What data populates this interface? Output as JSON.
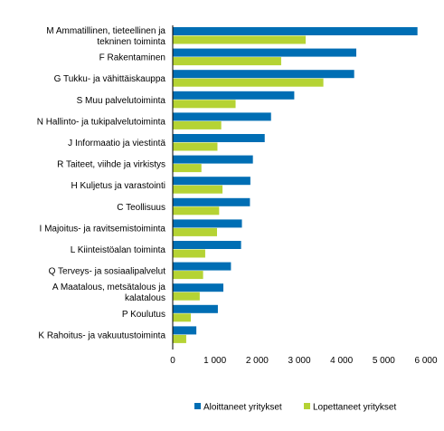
{
  "chart_data": {
    "type": "bar",
    "orientation": "horizontal",
    "categories": [
      "M Ammatillinen, tieteellinen ja tekninen toiminta",
      "F Rakentaminen",
      "G Tukku- ja vähittäiskauppa",
      "S Muu palvelutoiminta",
      "N Hallinto- ja tukipalvelutoiminta",
      "J Informaatio ja viestintä",
      "R Taiteet, viihde ja virkistys",
      "H Kuljetus ja varastointi",
      "C Teollisuus",
      "I Majoitus- ja ravitsemistoiminta",
      "L Kiinteistöalan toiminta",
      "Q Terveys- ja sosiaalipalvelut",
      "A Maatalous, metsätalous ja kalatalous",
      "P Koulutus",
      "K Rahoitus- ja vakuutustoiminta"
    ],
    "category_lines": [
      [
        "M Ammatillinen, tieteellinen ja",
        "tekninen toiminta"
      ],
      [
        "F Rakentaminen"
      ],
      [
        "G Tukku- ja vähittäiskauppa"
      ],
      [
        "S Muu palvelutoiminta"
      ],
      [
        "N Hallinto- ja tukipalvelutoiminta"
      ],
      [
        "J Informaatio ja viestintä"
      ],
      [
        "R Taiteet, viihde ja virkistys"
      ],
      [
        "H Kuljetus ja varastointi"
      ],
      [
        "C Teollisuus"
      ],
      [
        "I Majoitus- ja ravitsemistoiminta"
      ],
      [
        "L Kiinteistöalan toiminta"
      ],
      [
        "Q Terveys- ja sosiaalipalvelut"
      ],
      [
        "A Maatalous, metsätalous ja",
        "kalatalous"
      ],
      [
        "P Koulutus"
      ],
      [
        "K Rahoitus- ja vakuutustoiminta"
      ]
    ],
    "series": [
      {
        "name": "Aloittaneet yritykset",
        "color": "#006eb4",
        "values": [
          5800,
          4350,
          4300,
          2880,
          2330,
          2180,
          1900,
          1840,
          1830,
          1640,
          1620,
          1380,
          1200,
          1070,
          560
        ]
      },
      {
        "name": "Lopettaneet yritykset",
        "color": "#b5d334",
        "values": [
          3150,
          2570,
          3570,
          1490,
          1150,
          1060,
          680,
          1180,
          1100,
          1050,
          770,
          720,
          640,
          430,
          320
        ]
      }
    ],
    "xlim": [
      0,
      6000
    ],
    "xticks": [
      0,
      1000,
      2000,
      3000,
      4000,
      5000,
      6000
    ],
    "xtick_labels": [
      "0",
      "1 000",
      "2 000",
      "3 000",
      "4 000",
      "5 000",
      "6 000"
    ],
    "grid": false,
    "legend_position": "bottom"
  }
}
